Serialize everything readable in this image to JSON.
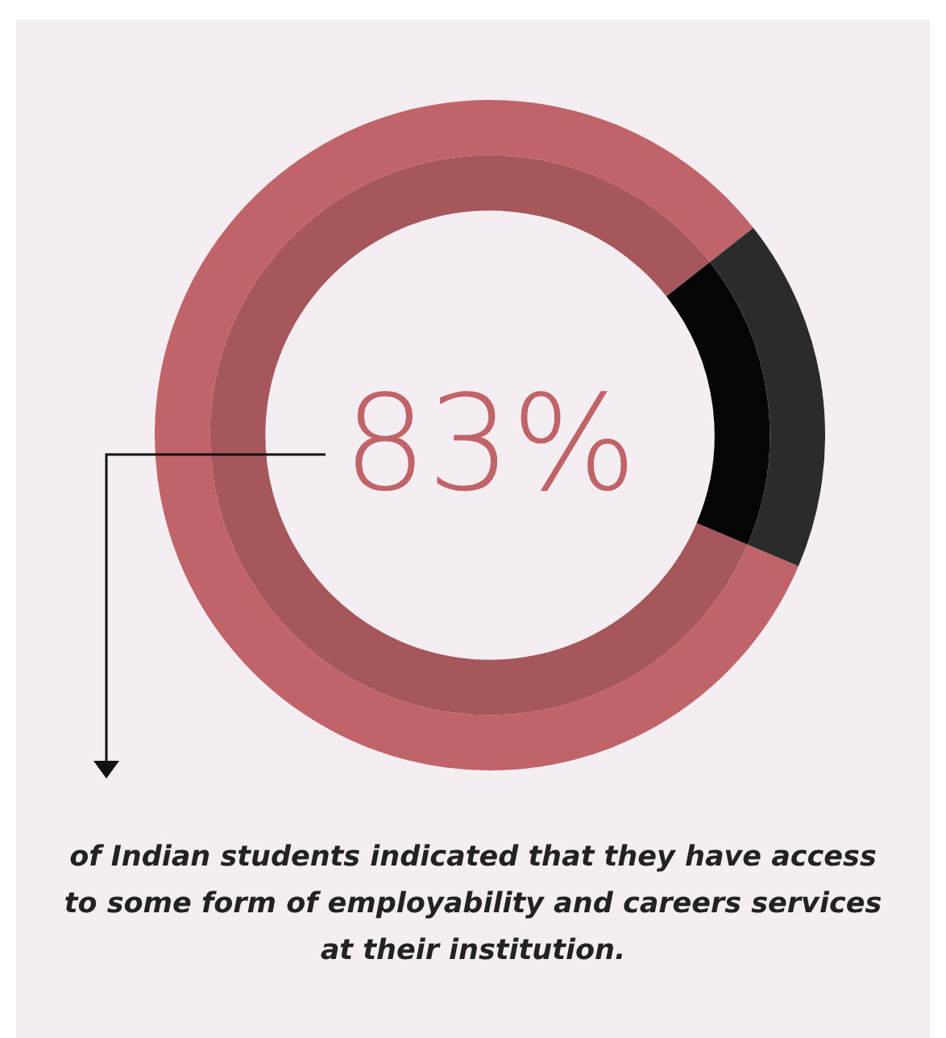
{
  "chart_data": {
    "type": "donut",
    "categories": [
      null,
      null
    ],
    "series": [
      {
        "values": [
          83,
          17
        ],
        "colors": [
          "#c0646a",
          "#2b2b2b"
        ]
      },
      {
        "values": [
          83,
          17
        ],
        "colors": [
          "#a6575b",
          "#050505"
        ]
      }
    ],
    "value_labels": [
      "83%",
      null
    ],
    "annotations": [
      "of Indian students indicated that they have access to some form of employability and careers services at their institution."
    ]
  }
}
